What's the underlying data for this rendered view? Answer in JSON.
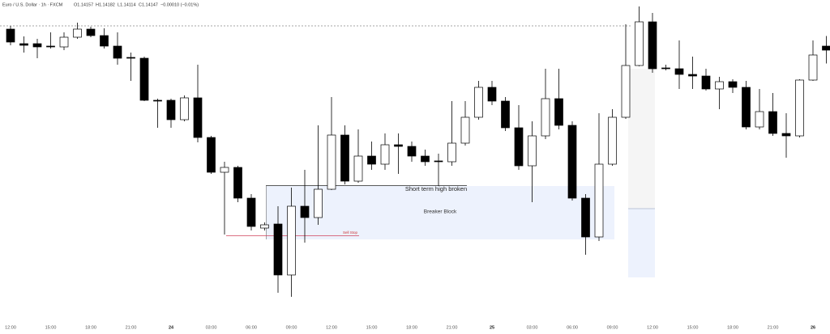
{
  "chart_data": {
    "type": "candlestick",
    "title": "Euro / U.S. Dollar · 1h · FXCM",
    "header": [
      "O1.14157",
      "H1.14182",
      "L1.14114",
      "C1.14147",
      "−0.00010 (−0.01%)"
    ],
    "annotations": [
      "Short term high broken",
      "Breaker Block",
      "Sell Stop"
    ],
    "categories": [
      "12:00",
      null,
      null,
      "15:00",
      null,
      null,
      "18:00",
      null,
      null,
      "21:00",
      null,
      null,
      "24",
      null,
      null,
      "03:00",
      null,
      null,
      "06:00",
      null,
      null,
      "09:00",
      null,
      null,
      "12:00",
      null,
      null,
      "15:00",
      null,
      null,
      "18:00",
      null,
      null,
      "21:00",
      null,
      null,
      "25",
      null,
      null,
      "03:00",
      null,
      null,
      "06:00",
      null,
      null,
      "09:00",
      null,
      null,
      "12:00",
      null,
      null,
      "15:00",
      null,
      null,
      "18:00",
      null,
      null,
      "21:00",
      null,
      null,
      "26",
      null
    ],
    "open": [
      1.14199,
      1.14163,
      1.14163,
      1.14157,
      1.14155,
      1.14179,
      1.14199,
      1.14183,
      1.14157,
      1.14129,
      1.14127,
      1.14023,
      1.14023,
      1.13975,
      1.14029,
      1.13931,
      1.13845,
      1.13857,
      1.13781,
      1.13707,
      1.13717,
      1.13591,
      1.13761,
      1.13733,
      1.13803,
      1.13937,
      1.13823,
      1.13885,
      1.13865,
      1.13913,
      1.13909,
      1.13885,
      1.13873,
      1.13871,
      1.13917,
      1.13981,
      1.14055,
      1.14021,
      1.13955,
      1.13861,
      1.13935,
      1.14027,
      1.13961,
      1.13781,
      1.13685,
      1.13865,
      1.13981,
      1.14109,
      1.14217,
      1.14103,
      1.14101,
      1.14087,
      1.14083,
      1.14051,
      1.14069,
      1.14055,
      1.13957,
      1.13995,
      1.13941,
      1.13935,
      1.14073,
      1.14157
    ],
    "high": [
      1.14207,
      1.14181,
      1.14175,
      1.14191,
      1.14191,
      1.14215,
      1.14205,
      1.14201,
      1.14191,
      1.14141,
      1.14131,
      1.14027,
      1.14027,
      1.14035,
      1.14111,
      1.13935,
      1.13871,
      1.13861,
      1.13791,
      1.13721,
      1.13761,
      1.13807,
      1.13851,
      1.13961,
      1.14031,
      1.13961,
      1.13951,
      1.13921,
      1.13941,
      1.13941,
      1.13921,
      1.13901,
      1.13891,
      1.14021,
      1.14021,
      1.14071,
      1.14071,
      1.14031,
      1.14011,
      1.13971,
      1.14101,
      1.14101,
      1.13971,
      1.13791,
      1.13991,
      1.14001,
      1.14211,
      1.14255,
      1.14239,
      1.14111,
      1.14171,
      1.14131,
      1.14101,
      1.14081,
      1.14075,
      1.14071,
      1.14051,
      1.14041,
      1.13991,
      1.14075,
      1.14171,
      1.14182
    ],
    "low": [
      1.14159,
      1.14141,
      1.14127,
      1.14151,
      1.14147,
      1.14175,
      1.14179,
      1.14151,
      1.14111,
      1.14071,
      1.14021,
      1.13955,
      1.13955,
      1.13971,
      1.13919,
      1.13841,
      1.13691,
      1.13771,
      1.13701,
      1.13701,
      1.13547,
      1.13537,
      1.13671,
      1.13715,
      1.13801,
      1.13815,
      1.13819,
      1.13851,
      1.13851,
      1.13841,
      1.13871,
      1.13861,
      1.13811,
      1.13861,
      1.13911,
      1.13975,
      1.14011,
      1.13947,
      1.13851,
      1.13771,
      1.13927,
      1.13951,
      1.13775,
      1.13641,
      1.13675,
      1.13861,
      1.13977,
      1.14107,
      1.14091,
      1.14097,
      1.14051,
      1.14051,
      1.14047,
      1.14001,
      1.14041,
      1.13951,
      1.13951,
      1.13935,
      1.13881,
      1.13931,
      1.14071,
      1.14114
    ],
    "close": [
      1.14167,
      1.14159,
      1.14155,
      1.14155,
      1.14179,
      1.14199,
      1.14183,
      1.14157,
      1.14127,
      1.14127,
      1.14023,
      1.14021,
      1.13975,
      1.14029,
      1.13931,
      1.13845,
      1.13857,
      1.13781,
      1.13711,
      1.13715,
      1.13591,
      1.13761,
      1.13733,
      1.13803,
      1.13937,
      1.13823,
      1.13885,
      1.13865,
      1.13913,
      1.13909,
      1.13885,
      1.13871,
      1.13871,
      1.13917,
      1.13981,
      1.14055,
      1.14021,
      1.13955,
      1.13861,
      1.13935,
      1.14027,
      1.13961,
      1.13781,
      1.13685,
      1.13865,
      1.13981,
      1.14109,
      1.14217,
      1.14101,
      1.14101,
      1.14087,
      1.14083,
      1.14051,
      1.14069,
      1.14055,
      1.13957,
      1.13995,
      1.13941,
      1.13935,
      1.14073,
      1.14135,
      1.14147
    ],
    "up_color": "#ffffff",
    "down_color": "#000000",
    "ylim": [
      1.13481,
      1.14271
    ],
    "grid": false
  }
}
